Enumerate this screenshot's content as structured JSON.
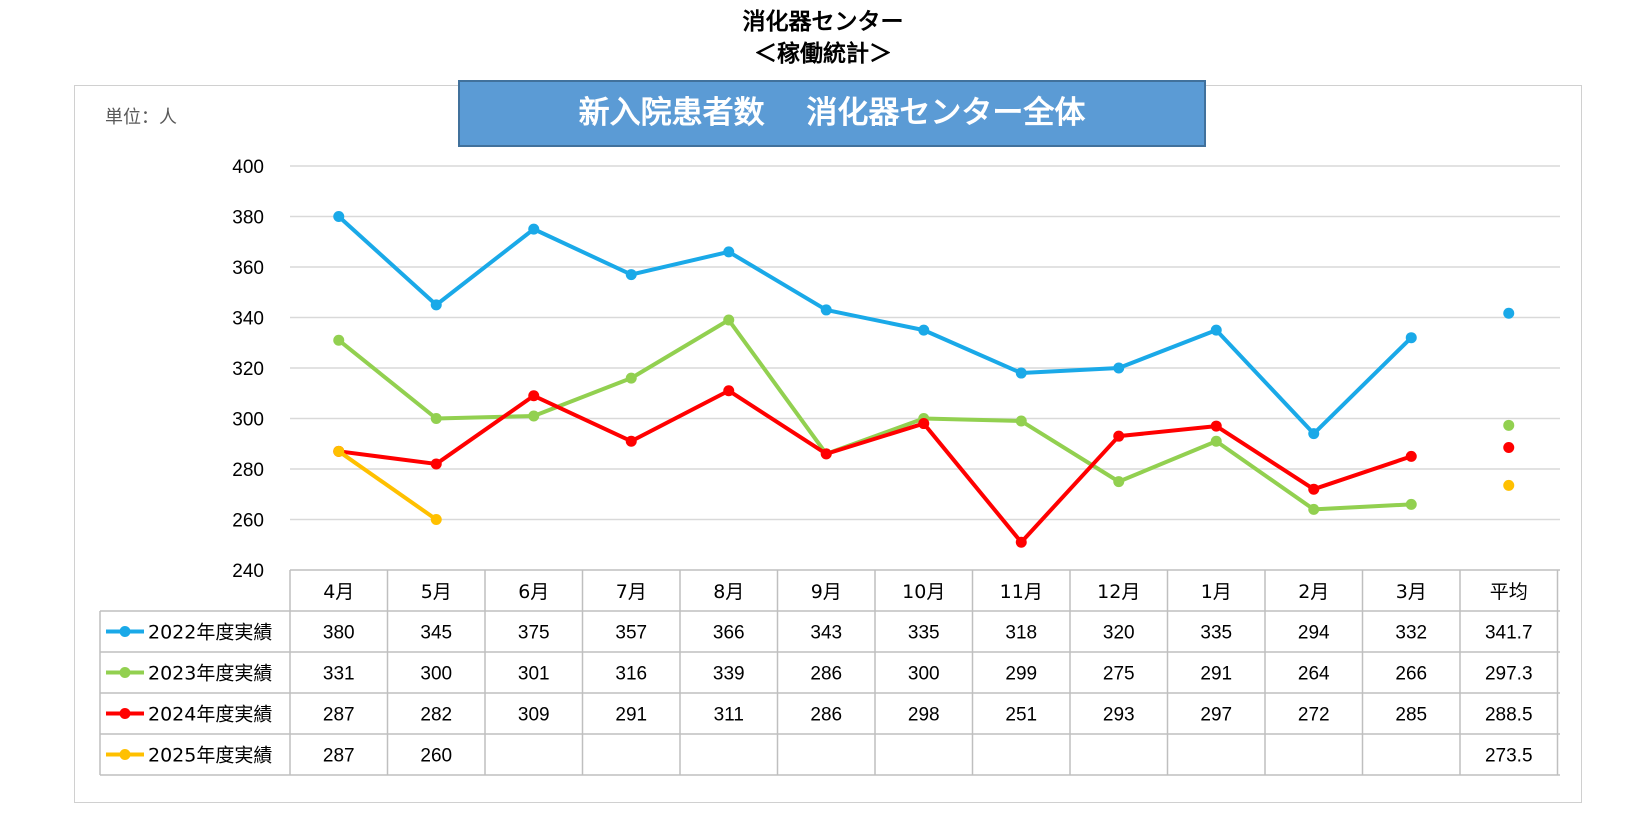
{
  "header": {
    "title_line1": "消化器センター",
    "title_line2": "＜稼働統計＞"
  },
  "chart_data": {
    "type": "line",
    "title": "新入院患者数　 消化器センター全体",
    "unit_label": "単位：人",
    "categories": [
      "4月",
      "5月",
      "6月",
      "7月",
      "8月",
      "9月",
      "10月",
      "11月",
      "12月",
      "1月",
      "2月",
      "3月"
    ],
    "average_label": "平均",
    "ylim": [
      240,
      400
    ],
    "yticks": [
      240,
      260,
      280,
      300,
      320,
      340,
      360,
      380,
      400
    ],
    "grid": true,
    "legend_placement": "data-table",
    "series": [
      {
        "name": "2022年度実績",
        "color": "#1aa9e8",
        "values": [
          380,
          345,
          375,
          357,
          366,
          343,
          335,
          318,
          320,
          335,
          294,
          332
        ],
        "average": "341.7"
      },
      {
        "name": "2023年度実績",
        "color": "#92d050",
        "values": [
          331,
          300,
          301,
          316,
          339,
          286,
          300,
          299,
          275,
          291,
          264,
          266
        ],
        "average": "297.3"
      },
      {
        "name": "2024年度実績",
        "color": "#ff0000",
        "values": [
          287,
          282,
          309,
          291,
          311,
          286,
          298,
          251,
          293,
          297,
          272,
          285
        ],
        "average": "288.5"
      },
      {
        "name": "2025年度実績",
        "color": "#ffc000",
        "values": [
          287,
          260,
          null,
          null,
          null,
          null,
          null,
          null,
          null,
          null,
          null,
          null
        ],
        "average": "273.5"
      }
    ]
  }
}
